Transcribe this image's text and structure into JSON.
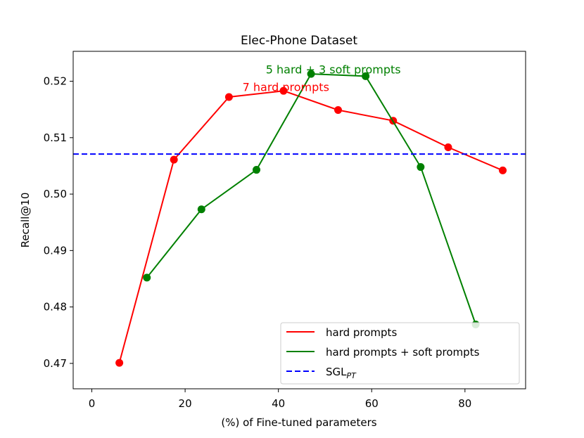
{
  "chart_data": {
    "type": "line",
    "title": "Elec-Phone Dataset",
    "xlabel": "(%) of Fine-tuned parameters",
    "ylabel": "Recall@10",
    "xlim": [
      -4,
      93
    ],
    "ylim": [
      0.4655,
      0.5253
    ],
    "xticks": [
      0,
      20,
      40,
      60,
      80
    ],
    "yticks": [
      0.47,
      0.48,
      0.49,
      0.5,
      0.51,
      0.52
    ],
    "ytick_labels": [
      "0.47",
      "0.48",
      "0.49",
      "0.50",
      "0.51",
      "0.52"
    ],
    "grid": false,
    "legend_position": "lower-right",
    "series": [
      {
        "name": "hard prompts",
        "color": "#ff0000",
        "style": "solid",
        "x": [
          5.9,
          17.6,
          29.4,
          41.1,
          52.8,
          64.6,
          76.4,
          88.1
        ],
        "y": [
          0.4701,
          0.5061,
          0.5172,
          0.5183,
          0.5149,
          0.513,
          0.5083,
          0.5042
        ]
      },
      {
        "name": "hard prompts + soft prompts",
        "color": "#008000",
        "style": "solid",
        "x": [
          11.8,
          23.5,
          35.3,
          47.0,
          58.7,
          70.5,
          82.3
        ],
        "y": [
          0.4852,
          0.4973,
          0.5043,
          0.5213,
          0.5209,
          0.5048,
          0.4769
        ]
      },
      {
        "name": "SGL",
        "name_subscript": "PT",
        "color": "#0000ff",
        "style": "dashed",
        "hline": 0.5071
      }
    ],
    "annotations": [
      {
        "text": "5 hard + 3 soft prompts",
        "color": "#008000",
        "x": 37.3,
        "y": 0.5221
      },
      {
        "text": "7 hard prompts",
        "color": "#ff0000",
        "x": 32.3,
        "y": 0.519
      }
    ]
  }
}
